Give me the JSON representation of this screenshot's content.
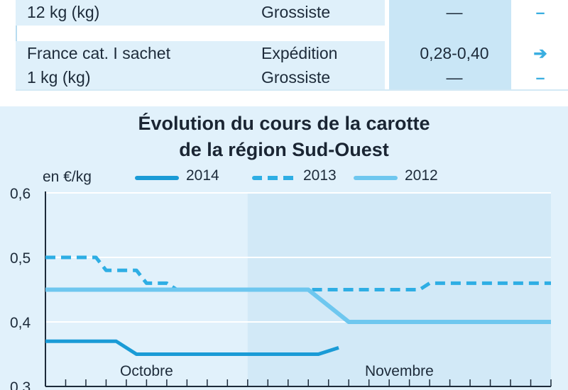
{
  "table": {
    "rows": [
      {
        "product_lines": [
          "12 kg (kg)"
        ],
        "stage_lines": [
          "Grossiste"
        ],
        "price_lines": [
          "—"
        ],
        "trend_lines": [
          "–"
        ]
      },
      {
        "product_lines": [
          "France cat. I sachet",
          "1 kg (kg)"
        ],
        "stage_lines": [
          "Expédition",
          "Grossiste"
        ],
        "price_lines": [
          "0,28-0,40",
          "—"
        ],
        "trend_lines": [
          "➔",
          "–"
        ]
      }
    ]
  },
  "chart_data": {
    "type": "line",
    "title": [
      "Évolution du cours de la carotte",
      "de la région Sud-Ouest"
    ],
    "ylabel": "en €/kg",
    "ylim": [
      0.3,
      0.6
    ],
    "yticks": [
      0.3,
      0.4,
      0.5,
      0.6
    ],
    "ytick_labels": [
      "0,3",
      "0,4",
      "0,5",
      "0,6"
    ],
    "xlim": [
      0,
      25
    ],
    "month_labels": [
      {
        "label": "Octobre",
        "center": 5
      },
      {
        "label": "Novembre",
        "center": 17.5
      }
    ],
    "month_boundary": 10,
    "series": [
      {
        "name": "2014",
        "style": "solid",
        "color": "#1a9bd6",
        "x": [
          0,
          3.5,
          4.5,
          13.5,
          14.5
        ],
        "y": [
          0.37,
          0.37,
          0.35,
          0.35,
          0.36
        ]
      },
      {
        "name": "2013",
        "style": "dashed",
        "color": "#2eaee4",
        "x": [
          0,
          2.5,
          3,
          4.5,
          5,
          6,
          6.5,
          10,
          10.5,
          13.5,
          14,
          18.5,
          19,
          25
        ],
        "y": [
          0.5,
          0.5,
          0.48,
          0.48,
          0.46,
          0.46,
          0.45,
          0.45,
          0.45,
          0.45,
          0.45,
          0.45,
          0.46,
          0.46
        ]
      },
      {
        "name": "2012",
        "style": "solid",
        "color": "#6ec7ef",
        "x": [
          0,
          13,
          15,
          25
        ],
        "y": [
          0.45,
          0.45,
          0.4,
          0.4
        ]
      }
    ]
  }
}
